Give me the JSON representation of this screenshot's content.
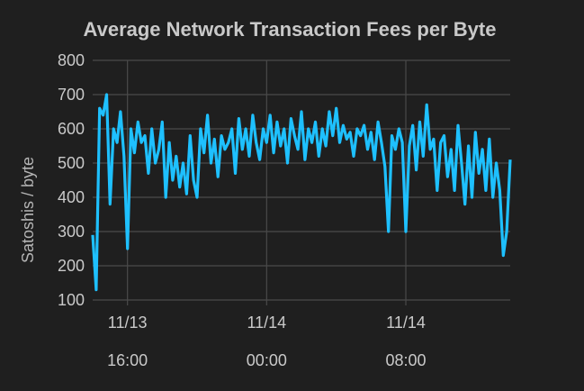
{
  "chart_data": {
    "type": "line",
    "title": "Average Network Transaction Fees per Byte",
    "xlabel": "",
    "ylabel": "Satoshis / byte",
    "ylim": [
      100,
      800
    ],
    "yticks": [
      100,
      200,
      300,
      400,
      500,
      600,
      700,
      800
    ],
    "xlim": [
      "11/13 14:00",
      "11/14 14:00"
    ],
    "xticks": [
      {
        "at": "11/13 16:00",
        "date": "11/13",
        "time": "16:00"
      },
      {
        "at": "11/14 00:00",
        "date": "11/14",
        "time": "00:00"
      },
      {
        "at": "11/14 08:00",
        "date": "11/14",
        "time": "08:00"
      }
    ],
    "grid": true,
    "line_color": "#1ec0ff",
    "background": "#1f1f1f",
    "x": [
      "11/13 14:00",
      "11/13 14:12",
      "11/13 14:24",
      "11/13 14:36",
      "11/13 14:48",
      "11/13 15:00",
      "11/13 15:12",
      "11/13 15:24",
      "11/13 15:36",
      "11/13 15:48",
      "11/13 16:00",
      "11/13 16:12",
      "11/13 16:24",
      "11/13 16:36",
      "11/13 16:48",
      "11/13 17:00",
      "11/13 17:12",
      "11/13 17:24",
      "11/13 17:36",
      "11/13 17:48",
      "11/13 18:00",
      "11/13 18:12",
      "11/13 18:24",
      "11/13 18:36",
      "11/13 18:48",
      "11/13 19:00",
      "11/13 19:12",
      "11/13 19:24",
      "11/13 19:36",
      "11/13 19:48",
      "11/13 20:00",
      "11/13 20:12",
      "11/13 20:24",
      "11/13 20:36",
      "11/13 20:48",
      "11/13 21:00",
      "11/13 21:12",
      "11/13 21:24",
      "11/13 21:36",
      "11/13 21:48",
      "11/13 22:00",
      "11/13 22:12",
      "11/13 22:24",
      "11/13 22:36",
      "11/13 22:48",
      "11/13 23:00",
      "11/13 23:12",
      "11/13 23:24",
      "11/13 23:36",
      "11/13 23:48",
      "11/14 00:00",
      "11/14 00:12",
      "11/14 00:24",
      "11/14 00:36",
      "11/14 00:48",
      "11/14 01:00",
      "11/14 01:12",
      "11/14 01:24",
      "11/14 01:36",
      "11/14 01:48",
      "11/14 02:00",
      "11/14 02:12",
      "11/14 02:24",
      "11/14 02:36",
      "11/14 02:48",
      "11/14 03:00",
      "11/14 03:12",
      "11/14 03:24",
      "11/14 03:36",
      "11/14 03:48",
      "11/14 04:00",
      "11/14 04:12",
      "11/14 04:24",
      "11/14 04:36",
      "11/14 04:48",
      "11/14 05:00",
      "11/14 05:12",
      "11/14 05:24",
      "11/14 05:36",
      "11/14 05:48",
      "11/14 06:00",
      "11/14 06:12",
      "11/14 06:24",
      "11/14 06:36",
      "11/14 06:48",
      "11/14 07:00",
      "11/14 07:12",
      "11/14 07:24",
      "11/14 07:36",
      "11/14 07:48",
      "11/14 08:00",
      "11/14 08:12",
      "11/14 08:24",
      "11/14 08:36",
      "11/14 08:48",
      "11/14 09:00",
      "11/14 09:12",
      "11/14 09:24",
      "11/14 09:36",
      "11/14 09:48",
      "11/14 10:00",
      "11/14 10:12",
      "11/14 10:24",
      "11/14 10:36",
      "11/14 10:48",
      "11/14 11:00",
      "11/14 11:12",
      "11/14 11:24",
      "11/14 11:36",
      "11/14 11:48",
      "11/14 12:00",
      "11/14 12:12",
      "11/14 12:24",
      "11/14 12:36",
      "11/14 12:48",
      "11/14 13:00",
      "11/14 13:12",
      "11/14 13:24",
      "11/14 13:36",
      "11/14 13:48",
      "11/14 14:00"
    ],
    "values": [
      290,
      130,
      660,
      640,
      700,
      380,
      600,
      560,
      650,
      520,
      250,
      600,
      530,
      620,
      560,
      580,
      470,
      600,
      500,
      540,
      620,
      400,
      560,
      450,
      520,
      430,
      500,
      410,
      580,
      450,
      400,
      600,
      530,
      640,
      500,
      570,
      460,
      580,
      540,
      560,
      600,
      470,
      630,
      540,
      600,
      520,
      640,
      560,
      510,
      600,
      560,
      640,
      530,
      620,
      550,
      600,
      500,
      630,
      580,
      540,
      650,
      510,
      600,
      560,
      620,
      520,
      600,
      550,
      650,
      580,
      660,
      560,
      610,
      570,
      590,
      520,
      600,
      580,
      610,
      540,
      590,
      510,
      620,
      560,
      490,
      300,
      580,
      540,
      600,
      560,
      300,
      550,
      610,
      480,
      620,
      520,
      670,
      540,
      570,
      420,
      560,
      580,
      460,
      540,
      420,
      610,
      500,
      380,
      550,
      400,
      590,
      470,
      540,
      420,
      570,
      400,
      500,
      420,
      230,
      300,
      510
    ]
  }
}
